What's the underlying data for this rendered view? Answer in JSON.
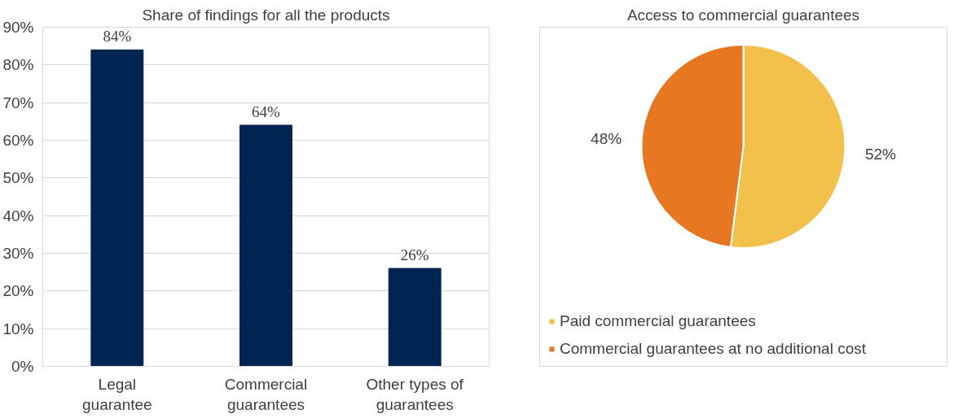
{
  "chart_data": [
    {
      "type": "bar",
      "title": "Share of findings for all the products",
      "categories": [
        "Legal guarantee",
        "Commercial guarantees",
        "Other types of guarantees"
      ],
      "values": [
        84,
        64,
        26
      ],
      "color": "#002451",
      "value_labels": [
        "84%",
        "64%",
        "26%"
      ],
      "ylim": [
        0,
        90
      ],
      "yticks": [
        {
          "value": 0,
          "label": "0%"
        },
        {
          "value": 10,
          "label": "10%"
        },
        {
          "value": 20,
          "label": "20%"
        },
        {
          "value": 30,
          "label": "30%"
        },
        {
          "value": 40,
          "label": "40%"
        },
        {
          "value": 50,
          "label": "50%"
        },
        {
          "value": 60,
          "label": "60%"
        },
        {
          "value": 70,
          "label": "70%"
        },
        {
          "value": 80,
          "label": "80%"
        },
        {
          "value": 90,
          "label": "90%"
        }
      ],
      "grid": "y"
    },
    {
      "type": "pie",
      "title": "Access to commercial guarantees",
      "categories": [
        "Paid commercial guarantees",
        "Commercial guarantees at no additional cost"
      ],
      "values": [
        52,
        48
      ],
      "colors": [
        "#f2c04b",
        "#e87722"
      ],
      "value_labels": [
        "52%",
        "48%"
      ],
      "legend": "bottom"
    }
  ]
}
